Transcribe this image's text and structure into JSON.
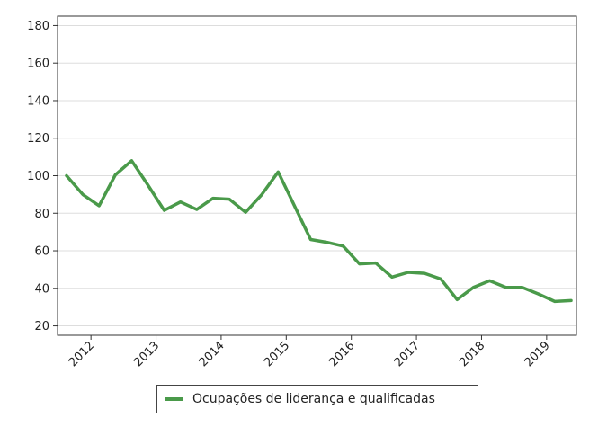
{
  "chart_data": {
    "type": "line",
    "title": "",
    "xlabel": "",
    "ylabel": "",
    "ylim": [
      15,
      185
    ],
    "y_ticks": [
      20,
      40,
      60,
      80,
      100,
      120,
      140,
      160,
      180
    ],
    "y_tick_labels": [
      "20",
      "40",
      "60",
      "80",
      "100",
      "120",
      "140",
      "160",
      "180"
    ],
    "x_ticks": [
      "2012",
      "2013",
      "2014",
      "2015",
      "2016",
      "2017",
      "2018",
      "2019"
    ],
    "grid": "horizontal",
    "legend_position": "bottom-center",
    "series": [
      {
        "name": "Ocupações de liderança e qualificadas",
        "color": "#4a9a4a",
        "x": [
          "2012-Q1",
          "2012-Q2",
          "2012-Q3",
          "2012-Q4",
          "2013-Q1",
          "2013-Q2",
          "2013-Q3",
          "2013-Q4",
          "2014-Q1",
          "2014-Q2",
          "2014-Q3",
          "2014-Q4",
          "2015-Q1",
          "2015-Q2",
          "2015-Q3",
          "2015-Q4",
          "2016-Q1",
          "2016-Q2",
          "2016-Q3",
          "2016-Q4",
          "2017-Q1",
          "2017-Q2",
          "2017-Q3",
          "2017-Q4",
          "2018-Q1",
          "2018-Q2",
          "2018-Q3",
          "2018-Q4",
          "2019-Q1",
          "2019-Q2",
          "2019-Q3",
          "2019-Q4"
        ],
        "values": [
          100,
          90,
          84,
          100.5,
          108,
          95,
          81.5,
          86,
          82,
          88,
          87.5,
          80.5,
          90,
          102,
          84,
          66,
          64.5,
          62.5,
          53,
          53.5,
          46,
          48.5,
          48,
          45,
          34,
          40.5,
          44,
          40.5,
          40.5,
          37,
          33,
          33.5
        ]
      }
    ]
  }
}
